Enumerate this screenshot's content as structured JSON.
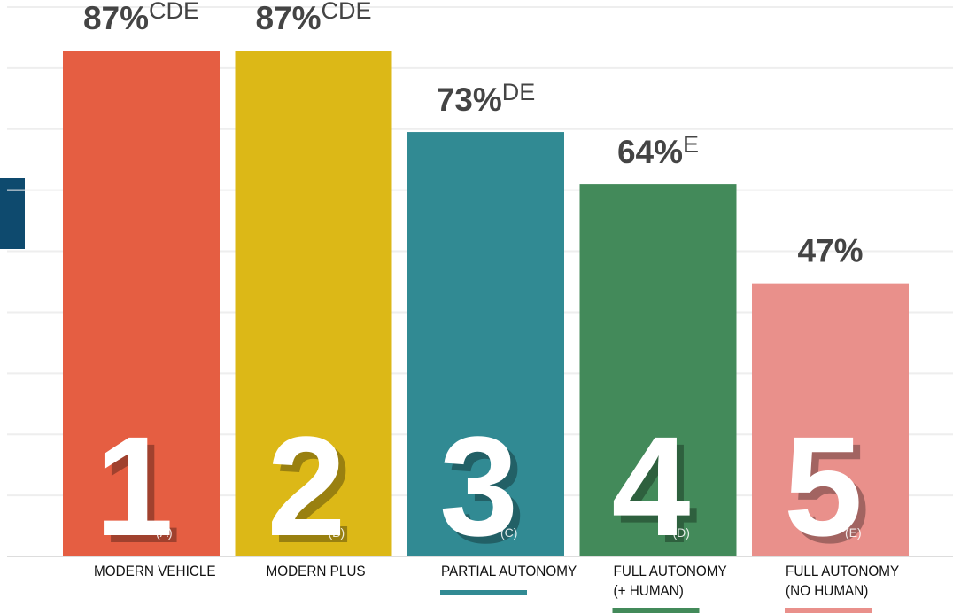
{
  "chart_data": {
    "type": "bar",
    "categories": [
      [
        "MODERN VEHICLE"
      ],
      [
        "MODERN PLUS"
      ],
      [
        "PARTIAL AUTONOMY"
      ],
      [
        "FULL AUTONOMY",
        "(+ HUMAN)"
      ],
      [
        "FULL AUTONOMY",
        "(NO HUMAN)"
      ]
    ],
    "values": [
      87,
      87,
      73,
      64,
      47
    ],
    "value_labels": [
      "87%",
      "87%",
      "73%",
      "64%",
      "47%"
    ],
    "value_superscripts": [
      "CDE",
      "CDE",
      "DE",
      "E",
      null
    ],
    "bar_numbers": [
      1,
      2,
      3,
      4,
      5
    ],
    "bar_letters": [
      "(A)",
      "(B)",
      "(C)",
      "(D)",
      "(E)"
    ],
    "colors": [
      "#e55e42",
      "#dcb817",
      "#318a93",
      "#438a5a",
      "#e9908b"
    ],
    "ylim": [
      0,
      94.5
    ],
    "yticks": [
      0,
      10.5,
      21,
      31.5,
      42,
      52.5,
      63,
      73.5,
      84,
      94.5
    ],
    "grid": true
  }
}
